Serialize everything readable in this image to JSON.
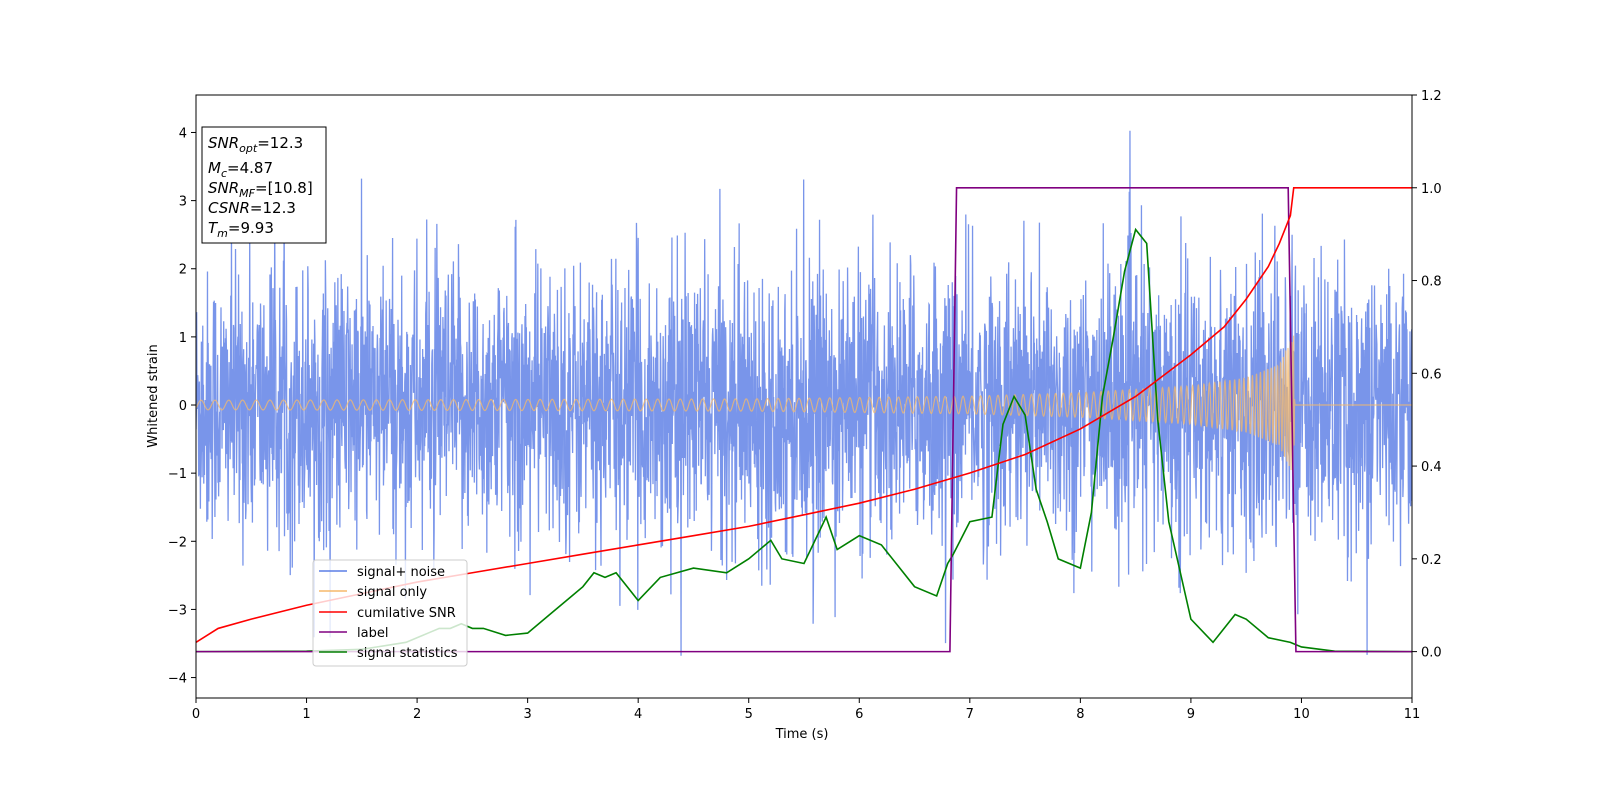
{
  "chart_data": {
    "type": "line",
    "xlabel": "Time (s)",
    "ylabel": "Whitened strain",
    "xlim": [
      0,
      11
    ],
    "ylim": [
      -4.3,
      4.55
    ],
    "y2lim": [
      -0.1,
      1.2
    ],
    "xticks": [
      "0",
      "1",
      "2",
      "3",
      "4",
      "5",
      "6",
      "7",
      "8",
      "9",
      "10",
      "11"
    ],
    "yticks": [
      "−4",
      "−3",
      "−2",
      "−1",
      "0",
      "1",
      "2",
      "3",
      "4"
    ],
    "y2ticks": [
      "0.0",
      "0.2",
      "0.4",
      "0.6",
      "0.8",
      "1.0",
      "1.2"
    ],
    "grid": false,
    "legend_position": "lower-left",
    "colors": {
      "noise": "#5b7ee5",
      "signal": "#f5b96b",
      "csnr": "#ff0000",
      "label": "#800080",
      "stat": "#008000"
    },
    "annotation": {
      "snr_opt": {
        "base": "SNR",
        "sub": "opt",
        "value": "=12.3"
      },
      "mc": {
        "base": "M",
        "sub": "c",
        "value": "=4.87"
      },
      "snr_mf": {
        "base": "SNR",
        "sub": "MF",
        "value": "=[10.8]"
      },
      "csnr": {
        "base": "CSNR",
        "value": "=12.3"
      },
      "tm": {
        "base": "T",
        "sub": "m",
        "value": "=9.93"
      }
    },
    "series": [
      {
        "name": "signal+ noise",
        "axis": "left",
        "noise_sigma": 1.0,
        "amplitude_range": [
          -3.9,
          4.2
        ]
      },
      {
        "name": "signal only",
        "axis": "left",
        "envelope": {
          "t": [
            0,
            5,
            7,
            8,
            9,
            9.5,
            9.8,
            9.93,
            9.94,
            11
          ],
          "amp": [
            0.07,
            0.09,
            0.13,
            0.18,
            0.28,
            0.4,
            0.6,
            1.05,
            0.0,
            0.0
          ]
        }
      },
      {
        "name": "cumilative SNR",
        "axis": "right",
        "x": [
          0,
          0.2,
          0.5,
          1,
          1.5,
          2,
          2.5,
          3,
          3.5,
          4,
          4.5,
          5,
          5.5,
          6,
          6.5,
          7,
          7.5,
          8,
          8.5,
          9,
          9.3,
          9.5,
          9.7,
          9.8,
          9.9,
          9.93,
          10,
          11
        ],
        "y": [
          0.02,
          0.05,
          0.07,
          0.1,
          0.125,
          0.15,
          0.17,
          0.19,
          0.21,
          0.23,
          0.25,
          0.27,
          0.295,
          0.32,
          0.35,
          0.385,
          0.425,
          0.48,
          0.55,
          0.64,
          0.7,
          0.76,
          0.83,
          0.88,
          0.94,
          1.0,
          1.0,
          1.0
        ]
      },
      {
        "name": "label",
        "axis": "right",
        "x": [
          0,
          6.82,
          6.88,
          9.88,
          9.95,
          11
        ],
        "y": [
          0,
          0,
          1,
          1,
          0,
          0
        ]
      },
      {
        "name": "signal statistics",
        "axis": "right",
        "x": [
          0,
          1,
          1.5,
          1.9,
          2.1,
          2.2,
          2.3,
          2.4,
          2.5,
          2.6,
          2.8,
          3,
          3.2,
          3.4,
          3.5,
          3.6,
          3.7,
          3.8,
          3.9,
          4,
          4.2,
          4.5,
          4.8,
          5,
          5.2,
          5.3,
          5.5,
          5.7,
          5.8,
          6,
          6.2,
          6.5,
          6.7,
          6.8,
          6.85,
          7,
          7.2,
          7.3,
          7.4,
          7.5,
          7.6,
          7.7,
          7.8,
          8,
          8.1,
          8.2,
          8.3,
          8.4,
          8.5,
          8.6,
          8.7,
          8.8,
          9,
          9.2,
          9.4,
          9.5,
          9.7,
          9.9,
          10,
          10.3,
          11
        ],
        "y": [
          0,
          0.001,
          0.005,
          0.02,
          0.04,
          0.05,
          0.05,
          0.06,
          0.05,
          0.05,
          0.035,
          0.04,
          0.08,
          0.12,
          0.14,
          0.17,
          0.16,
          0.17,
          0.14,
          0.11,
          0.16,
          0.18,
          0.17,
          0.2,
          0.24,
          0.2,
          0.19,
          0.29,
          0.22,
          0.25,
          0.23,
          0.14,
          0.12,
          0.19,
          0.21,
          0.28,
          0.29,
          0.49,
          0.55,
          0.51,
          0.35,
          0.28,
          0.2,
          0.18,
          0.3,
          0.55,
          0.68,
          0.82,
          0.91,
          0.88,
          0.5,
          0.28,
          0.07,
          0.02,
          0.08,
          0.07,
          0.03,
          0.02,
          0.01,
          0.001,
          0
        ]
      }
    ]
  }
}
